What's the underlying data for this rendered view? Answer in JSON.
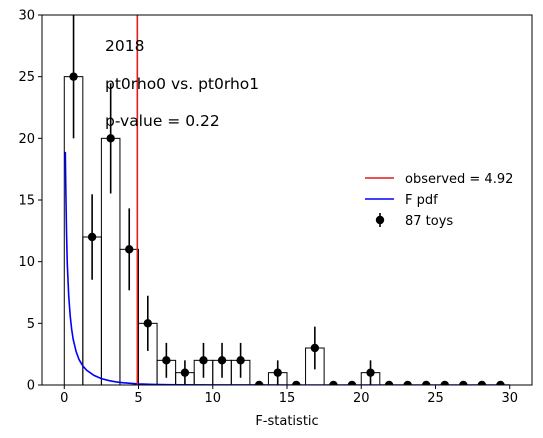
{
  "chart_data": {
    "type": "histogram",
    "title": "",
    "xlabel": "F-statistic",
    "ylabel": "",
    "xlim": [
      -1.5,
      31.5
    ],
    "ylim": [
      0,
      30
    ],
    "xticks": [
      0,
      5,
      10,
      15,
      20,
      25,
      30
    ],
    "yticks": [
      0,
      5,
      10,
      15,
      20,
      25,
      30
    ],
    "annotations": [
      "2018",
      "pt0rho0 vs. pt0rho1",
      "p-value = 0.22"
    ],
    "bins": {
      "start": 0,
      "width": 1.25,
      "counts": [
        25,
        12,
        20,
        11,
        5,
        2,
        1,
        2,
        2,
        2,
        0,
        1,
        0,
        3,
        0,
        0,
        1,
        0,
        0,
        0,
        0,
        0,
        0,
        0
      ]
    },
    "toys": {
      "label": "87 toys",
      "color": "#000000",
      "x": [
        0.625,
        1.875,
        3.125,
        4.375,
        5.625,
        6.875,
        8.125,
        9.375,
        10.625,
        11.875,
        13.125,
        14.375,
        15.625,
        16.875,
        18.125,
        19.375,
        20.625,
        21.875,
        23.125,
        24.375,
        25.625,
        26.875,
        28.125,
        29.375
      ],
      "y": [
        25,
        12,
        20,
        11,
        5,
        2,
        1,
        2,
        2,
        2,
        0,
        1,
        0,
        3,
        0,
        0,
        1,
        0,
        0,
        0,
        0,
        0,
        0,
        0
      ]
    },
    "observed": {
      "label": "observed = 4.92",
      "value": 4.92,
      "color": "#e41a1c"
    },
    "f_pdf": {
      "label": "F pdf",
      "color": "#0000ff",
      "x": [
        0.07,
        0.1,
        0.15,
        0.2,
        0.3,
        0.4,
        0.5,
        0.6,
        0.8,
        1.0,
        1.25,
        1.5,
        2.0,
        2.5,
        3.0,
        3.5,
        4.0,
        5.0,
        6.0,
        7.0,
        8.0,
        10.0,
        12.0,
        15.0,
        20.0,
        25.0,
        30.0
      ],
      "y": [
        18.9,
        16.2,
        12.5,
        9.9,
        7.2,
        5.6,
        4.5,
        3.7,
        2.7,
        2.05,
        1.55,
        1.2,
        0.78,
        0.52,
        0.36,
        0.25,
        0.18,
        0.09,
        0.05,
        0.025,
        0.012,
        0.004,
        0.0015,
        0.0004,
        0.0,
        0.0,
        0.0
      ]
    },
    "legend": {
      "position": "center-right"
    }
  }
}
